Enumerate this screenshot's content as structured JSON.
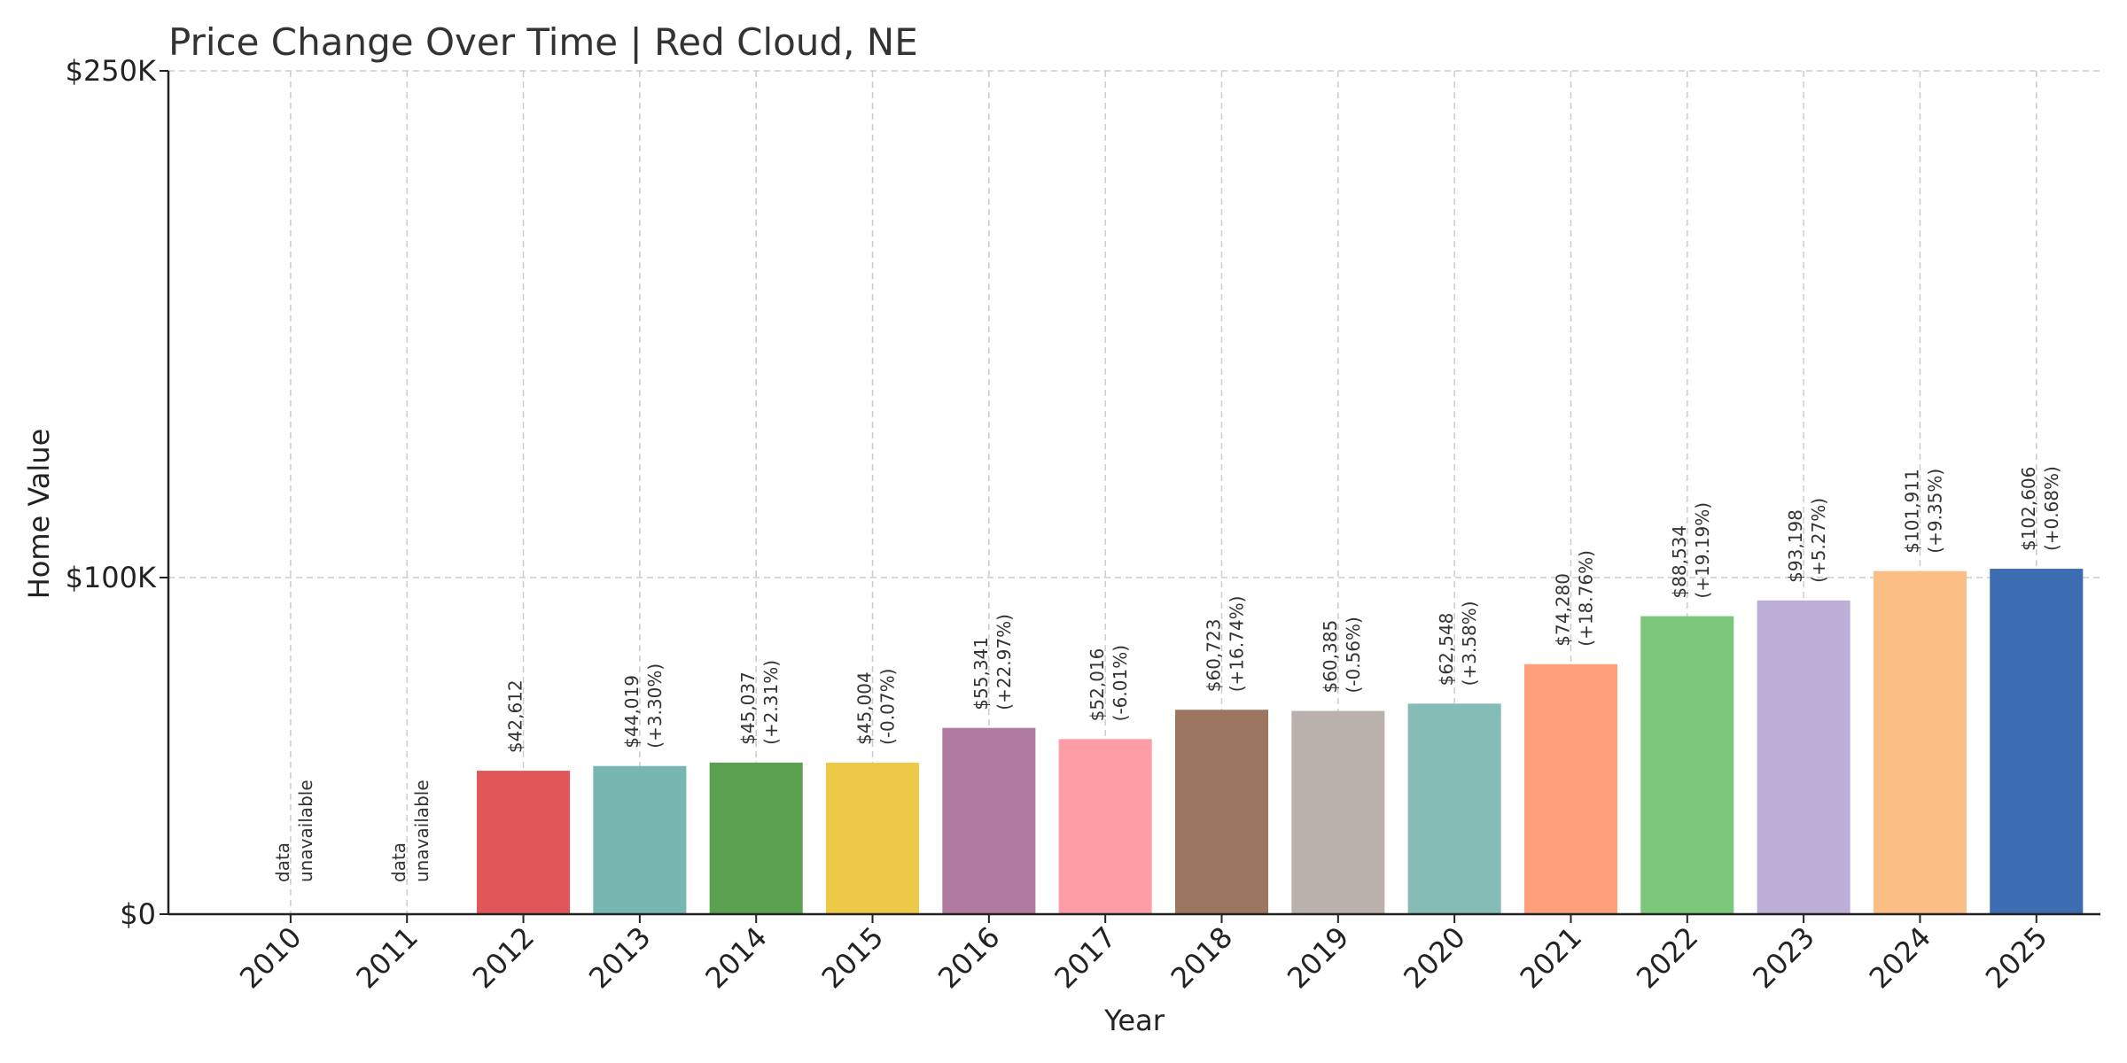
{
  "chart_data": {
    "type": "bar",
    "title": "Price Change Over Time | Red Cloud, NE",
    "xlabel": "Year",
    "ylabel": "Home Value",
    "y_ticks": [
      {
        "value": 0,
        "label": "$0"
      },
      {
        "value": 100000,
        "label": "$100K"
      },
      {
        "value": 250000,
        "label": "$250K"
      }
    ],
    "grid": true,
    "categories": [
      "2010",
      "2011",
      "2012",
      "2013",
      "2014",
      "2015",
      "2016",
      "2017",
      "2018",
      "2019",
      "2020",
      "2021",
      "2022",
      "2023",
      "2024",
      "2025"
    ],
    "values": [
      null,
      null,
      42612,
      44019,
      45037,
      45004,
      55341,
      52016,
      60723,
      60385,
      62548,
      74280,
      88534,
      93198,
      101911,
      102606
    ],
    "value_labels": [
      null,
      null,
      "$42,612",
      "$44,019",
      "$45,037",
      "$45,004",
      "$55,341",
      "$52,016",
      "$60,723",
      "$60,385",
      "$62,548",
      "$74,280",
      "$88,534",
      "$93,198",
      "$101,911",
      "$102,606"
    ],
    "change_labels": [
      null,
      null,
      null,
      "(+3.30%)",
      "(+2.31%)",
      "(-0.07%)",
      "(+22.97%)",
      "(-6.01%)",
      "(+16.74%)",
      "(-0.56%)",
      "(+3.58%)",
      "(+18.76%)",
      "(+19.19%)",
      "(+5.27%)",
      "(+9.35%)",
      "(+0.68%)"
    ],
    "unavailable_label": [
      "data",
      "unavailable"
    ],
    "colors": [
      "#e15759",
      "#e15759",
      "#e15759",
      "#76b7b2",
      "#59a14f",
      "#edc948",
      "#b07aa1",
      "#ff9da7",
      "#9c755f",
      "#bab0ac",
      "#86bcb6",
      "#ffa07a",
      "#7bc87b",
      "#bcaed4",
      "#fbbf85",
      "#3b6db0"
    ]
  }
}
